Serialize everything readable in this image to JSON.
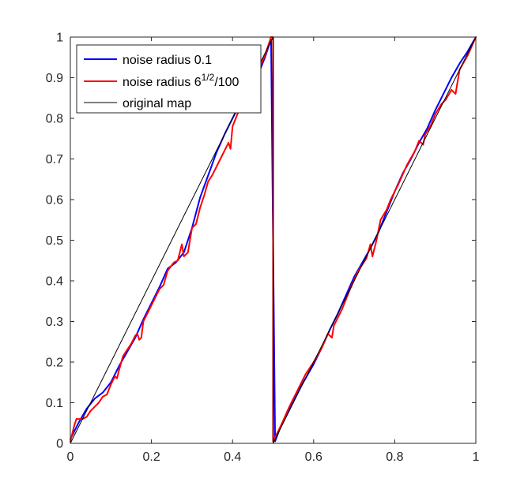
{
  "chart_data": {
    "type": "line",
    "title": "",
    "xlabel": "",
    "ylabel": "",
    "xlim": [
      0,
      1
    ],
    "ylim": [
      0,
      1
    ],
    "xticks": [
      0,
      0.2,
      0.4,
      0.6,
      0.8,
      1
    ],
    "xtick_labels": [
      "0",
      "0.2",
      "0.4",
      "0.6",
      "0.8",
      "1"
    ],
    "yticks": [
      0,
      0.1,
      0.2,
      0.3,
      0.4,
      0.5,
      0.6,
      0.7,
      0.8,
      0.9,
      1
    ],
    "ytick_labels": [
      "0",
      "0.1",
      "0.2",
      "0.3",
      "0.4",
      "0.5",
      "0.6",
      "0.7",
      "0.8",
      "0.9",
      "1"
    ],
    "grid": false,
    "legend_position": "top-left",
    "series": [
      {
        "name": "noise radius 0.1",
        "color": "#0000ff",
        "legend_main": "noise radius 0.1",
        "legend_sup": "",
        "legend_tail": "",
        "points": [
          [
            0,
            0.01
          ],
          [
            0.02,
            0.05
          ],
          [
            0.04,
            0.085
          ],
          [
            0.06,
            0.11
          ],
          [
            0.08,
            0.125
          ],
          [
            0.1,
            0.15
          ],
          [
            0.12,
            0.19
          ],
          [
            0.14,
            0.225
          ],
          [
            0.16,
            0.26
          ],
          [
            0.18,
            0.305
          ],
          [
            0.2,
            0.345
          ],
          [
            0.22,
            0.385
          ],
          [
            0.24,
            0.43
          ],
          [
            0.26,
            0.445
          ],
          [
            0.28,
            0.47
          ],
          [
            0.3,
            0.53
          ],
          [
            0.32,
            0.605
          ],
          [
            0.34,
            0.66
          ],
          [
            0.36,
            0.715
          ],
          [
            0.38,
            0.76
          ],
          [
            0.4,
            0.8
          ],
          [
            0.42,
            0.84
          ],
          [
            0.44,
            0.875
          ],
          [
            0.46,
            0.9
          ],
          [
            0.48,
            0.95
          ],
          [
            0.495,
            0.995
          ],
          [
            0.505,
            0.005
          ],
          [
            0.52,
            0.045
          ],
          [
            0.54,
            0.085
          ],
          [
            0.56,
            0.125
          ],
          [
            0.58,
            0.16
          ],
          [
            0.6,
            0.195
          ],
          [
            0.62,
            0.235
          ],
          [
            0.64,
            0.28
          ],
          [
            0.66,
            0.32
          ],
          [
            0.68,
            0.365
          ],
          [
            0.7,
            0.41
          ],
          [
            0.72,
            0.445
          ],
          [
            0.74,
            0.48
          ],
          [
            0.76,
            0.52
          ],
          [
            0.78,
            0.57
          ],
          [
            0.8,
            0.62
          ],
          [
            0.82,
            0.665
          ],
          [
            0.84,
            0.7
          ],
          [
            0.86,
            0.74
          ],
          [
            0.88,
            0.775
          ],
          [
            0.9,
            0.82
          ],
          [
            0.92,
            0.86
          ],
          [
            0.94,
            0.9
          ],
          [
            0.96,
            0.935
          ],
          [
            0.98,
            0.965
          ],
          [
            1,
            1
          ]
        ]
      },
      {
        "name": "noise radius 6^{1/2}/100",
        "color": "#ff0000",
        "legend_main": "noise radius 6",
        "legend_sup": "1/2",
        "legend_tail": "/100",
        "points": [
          [
            0,
            0.005
          ],
          [
            0.01,
            0.045
          ],
          [
            0.015,
            0.06
          ],
          [
            0.03,
            0.06
          ],
          [
            0.04,
            0.065
          ],
          [
            0.05,
            0.08
          ],
          [
            0.07,
            0.1
          ],
          [
            0.08,
            0.115
          ],
          [
            0.09,
            0.12
          ],
          [
            0.1,
            0.145
          ],
          [
            0.11,
            0.165
          ],
          [
            0.115,
            0.16
          ],
          [
            0.12,
            0.18
          ],
          [
            0.13,
            0.215
          ],
          [
            0.14,
            0.23
          ],
          [
            0.15,
            0.245
          ],
          [
            0.16,
            0.265
          ],
          [
            0.165,
            0.27
          ],
          [
            0.17,
            0.255
          ],
          [
            0.175,
            0.26
          ],
          [
            0.18,
            0.3
          ],
          [
            0.2,
            0.34
          ],
          [
            0.22,
            0.38
          ],
          [
            0.23,
            0.39
          ],
          [
            0.24,
            0.425
          ],
          [
            0.255,
            0.445
          ],
          [
            0.265,
            0.45
          ],
          [
            0.275,
            0.49
          ],
          [
            0.28,
            0.46
          ],
          [
            0.29,
            0.47
          ],
          [
            0.3,
            0.53
          ],
          [
            0.31,
            0.54
          ],
          [
            0.32,
            0.58
          ],
          [
            0.33,
            0.61
          ],
          [
            0.34,
            0.645
          ],
          [
            0.35,
            0.66
          ],
          [
            0.37,
            0.7
          ],
          [
            0.38,
            0.72
          ],
          [
            0.39,
            0.74
          ],
          [
            0.395,
            0.725
          ],
          [
            0.4,
            0.78
          ],
          [
            0.42,
            0.83
          ],
          [
            0.44,
            0.875
          ],
          [
            0.46,
            0.91
          ],
          [
            0.48,
            0.955
          ],
          [
            0.495,
            1
          ],
          [
            0.5,
            1
          ],
          [
            0.5,
            0.005
          ],
          [
            0.52,
            0.045
          ],
          [
            0.54,
            0.09
          ],
          [
            0.56,
            0.13
          ],
          [
            0.58,
            0.17
          ],
          [
            0.6,
            0.2
          ],
          [
            0.62,
            0.235
          ],
          [
            0.635,
            0.27
          ],
          [
            0.645,
            0.26
          ],
          [
            0.65,
            0.29
          ],
          [
            0.67,
            0.33
          ],
          [
            0.69,
            0.38
          ],
          [
            0.71,
            0.425
          ],
          [
            0.73,
            0.455
          ],
          [
            0.74,
            0.49
          ],
          [
            0.745,
            0.46
          ],
          [
            0.755,
            0.5
          ],
          [
            0.765,
            0.55
          ],
          [
            0.78,
            0.575
          ],
          [
            0.79,
            0.6
          ],
          [
            0.81,
            0.64
          ],
          [
            0.83,
            0.685
          ],
          [
            0.85,
            0.72
          ],
          [
            0.86,
            0.745
          ],
          [
            0.87,
            0.735
          ],
          [
            0.875,
            0.76
          ],
          [
            0.89,
            0.785
          ],
          [
            0.9,
            0.81
          ],
          [
            0.915,
            0.835
          ],
          [
            0.925,
            0.845
          ],
          [
            0.94,
            0.87
          ],
          [
            0.95,
            0.86
          ],
          [
            0.96,
            0.92
          ],
          [
            0.98,
            0.955
          ],
          [
            1,
            1
          ]
        ]
      },
      {
        "name": "original map",
        "color": "#000000",
        "legend_main": "original map",
        "legend_sup": "",
        "legend_tail": "",
        "points": [
          [
            0,
            0
          ],
          [
            0.5,
            1
          ],
          [
            0.5,
            0
          ],
          [
            1,
            1
          ]
        ]
      }
    ]
  }
}
